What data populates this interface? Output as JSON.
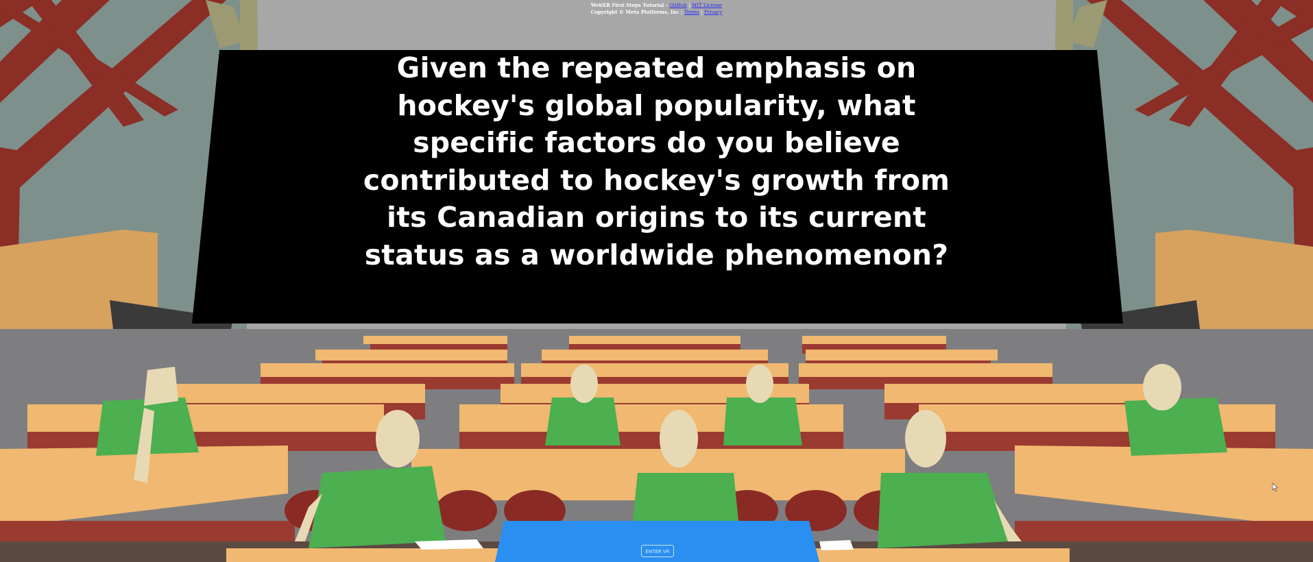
{
  "credits": {
    "line1_prefix": "WebXR First Steps Tutorial -",
    "github_link": "GitHub",
    "separator": "|",
    "license_link": "MIT License",
    "line2_prefix": "Copyright © Meta Platforms, Inc",
    "terms_link": "Terms",
    "privacy_link": "Privacy"
  },
  "board": {
    "question_lines": [
      "Given the repeated emphasis on",
      "hockey's global popularity, what",
      "specific factors do you believe",
      "contributed to hockey's growth from",
      "its Canadian origins to its current",
      "status as a worldwide phenomenon?"
    ]
  },
  "enter_vr": {
    "label": "ENTER VR"
  },
  "colors": {
    "sky": "#a7a7a7",
    "wall": "#8a9a96",
    "beam": "#8b2e26",
    "desk": "#f0b870",
    "seat": "#8a2a24",
    "shirt": "#4caf50",
    "skin": "#e8d9b5",
    "board": "#000000",
    "vr_panel": "#2a8ff0"
  }
}
